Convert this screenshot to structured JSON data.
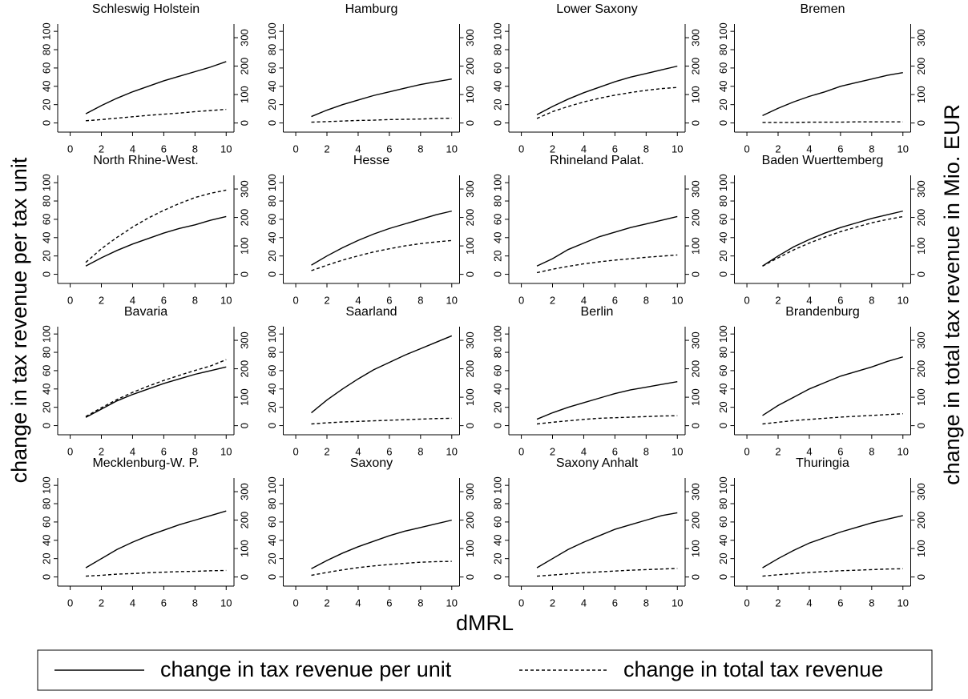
{
  "y_label": "change in tax revenue per tax unit",
  "y2_label": "change in total tax revenue in Mio. EUR",
  "x_label": "dMRL",
  "legend": [
    {
      "name": "change in tax revenue per unit",
      "style": "solid",
      "color": "#000000"
    },
    {
      "name": "change in total tax revenue",
      "style": "dashed",
      "color": "#000000"
    }
  ],
  "chart_data": [
    {
      "type": "line",
      "title": "Schleswig Holstein",
      "x": [
        1,
        2,
        3,
        4,
        5,
        6,
        7,
        8,
        9,
        10
      ],
      "xlim": [
        -0.8,
        10.5
      ],
      "xticks": [
        0,
        2,
        4,
        6,
        8,
        10
      ],
      "ylim": [
        -10,
        108
      ],
      "yticks": [
        0,
        20,
        40,
        60,
        80,
        100
      ],
      "y2lim": [
        -32,
        348
      ],
      "y2ticks": [
        0,
        100,
        200,
        300
      ],
      "series": [
        {
          "color": "#000000",
          "style": "solid",
          "values": [
            10,
            19,
            27,
            34,
            40,
            46,
            51,
            56,
            61,
            67
          ]
        },
        {
          "color": "#000000",
          "style": "dashed",
          "axis": "y2",
          "values": [
            8,
            12,
            17,
            22,
            27,
            31,
            35,
            40,
            44,
            48
          ]
        }
      ]
    },
    {
      "type": "line",
      "title": "Hamburg",
      "x": [
        1,
        2,
        3,
        4,
        5,
        6,
        7,
        8,
        9,
        10
      ],
      "xlim": [
        -0.8,
        10.5
      ],
      "xticks": [
        0,
        2,
        4,
        6,
        8,
        10
      ],
      "ylim": [
        -10,
        108
      ],
      "yticks": [
        0,
        20,
        40,
        60,
        80,
        100
      ],
      "y2lim": [
        -32,
        348
      ],
      "y2ticks": [
        0,
        100,
        200,
        300
      ],
      "series": [
        {
          "color": "#000000",
          "style": "solid",
          "values": [
            7,
            14,
            20,
            25,
            30,
            34,
            38,
            42,
            45,
            48
          ]
        },
        {
          "color": "#000000",
          "style": "dashed",
          "axis": "y2",
          "values": [
            3,
            5,
            7,
            9,
            10,
            12,
            13,
            14,
            16,
            17
          ]
        }
      ]
    },
    {
      "type": "line",
      "title": "Lower Saxony",
      "x": [
        1,
        2,
        3,
        4,
        5,
        6,
        7,
        8,
        9,
        10
      ],
      "xlim": [
        -0.8,
        10.5
      ],
      "xticks": [
        0,
        2,
        4,
        6,
        8,
        10
      ],
      "ylim": [
        -10,
        108
      ],
      "yticks": [
        0,
        20,
        40,
        60,
        80,
        100
      ],
      "y2lim": [
        -32,
        348
      ],
      "y2ticks": [
        0,
        100,
        200,
        300
      ],
      "series": [
        {
          "color": "#000000",
          "style": "solid",
          "values": [
            9,
            18,
            26,
            33,
            39,
            45,
            50,
            54,
            58,
            62
          ]
        },
        {
          "color": "#000000",
          "style": "dashed",
          "axis": "y2",
          "values": [
            16,
            40,
            58,
            74,
            87,
            98,
            107,
            115,
            121,
            125
          ]
        }
      ]
    },
    {
      "type": "line",
      "title": "Bremen",
      "x": [
        1,
        2,
        3,
        4,
        5,
        6,
        7,
        8,
        9,
        10
      ],
      "xlim": [
        -0.8,
        10.5
      ],
      "xticks": [
        0,
        2,
        4,
        6,
        8,
        10
      ],
      "ylim": [
        -10,
        108
      ],
      "yticks": [
        0,
        20,
        40,
        60,
        80,
        100
      ],
      "y2lim": [
        -32,
        348
      ],
      "y2ticks": [
        0,
        100,
        200,
        300
      ],
      "series": [
        {
          "color": "#000000",
          "style": "solid",
          "values": [
            8,
            16,
            23,
            29,
            34,
            40,
            44,
            48,
            52,
            55
          ]
        },
        {
          "color": "#000000",
          "style": "dashed",
          "axis": "y2",
          "values": [
            2,
            2,
            2,
            3,
            3,
            3,
            4,
            4,
            4,
            4
          ]
        }
      ]
    },
    {
      "type": "line",
      "title": "North Rhine-West.",
      "x": [
        1,
        2,
        3,
        4,
        5,
        6,
        7,
        8,
        9,
        10
      ],
      "xlim": [
        -0.8,
        10.5
      ],
      "xticks": [
        0,
        2,
        4,
        6,
        8,
        10
      ],
      "ylim": [
        -10,
        108
      ],
      "yticks": [
        0,
        20,
        40,
        60,
        80,
        100
      ],
      "y2lim": [
        -32,
        348
      ],
      "y2ticks": [
        0,
        100,
        200,
        300
      ],
      "series": [
        {
          "color": "#000000",
          "style": "solid",
          "values": [
            9,
            18,
            26,
            33,
            39,
            45,
            50,
            54,
            59,
            63
          ]
        },
        {
          "color": "#000000",
          "style": "dashed",
          "axis": "y2",
          "values": [
            42,
            90,
            130,
            166,
            198,
            225,
            249,
            270,
            285,
            296
          ]
        }
      ]
    },
    {
      "type": "line",
      "title": "Hesse",
      "x": [
        1,
        2,
        3,
        4,
        5,
        6,
        7,
        8,
        9,
        10
      ],
      "xlim": [
        -0.8,
        10.5
      ],
      "xticks": [
        0,
        2,
        4,
        6,
        8,
        10
      ],
      "ylim": [
        -10,
        108
      ],
      "yticks": [
        0,
        20,
        40,
        60,
        80,
        100
      ],
      "y2lim": [
        -32,
        348
      ],
      "y2ticks": [
        0,
        100,
        200,
        300
      ],
      "series": [
        {
          "color": "#000000",
          "style": "solid",
          "values": [
            10,
            20,
            29,
            37,
            44,
            50,
            55,
            60,
            65,
            69
          ]
        },
        {
          "color": "#000000",
          "style": "dashed",
          "axis": "y2",
          "values": [
            13,
            32,
            50,
            65,
            79,
            90,
            100,
            108,
            114,
            119
          ]
        }
      ]
    },
    {
      "type": "line",
      "title": "Rhineland Palat.",
      "x": [
        1,
        2,
        3,
        4,
        5,
        6,
        7,
        8,
        9,
        10
      ],
      "xlim": [
        -0.8,
        10.5
      ],
      "xticks": [
        0,
        2,
        4,
        6,
        8,
        10
      ],
      "ylim": [
        -10,
        108
      ],
      "yticks": [
        0,
        20,
        40,
        60,
        80,
        100
      ],
      "y2lim": [
        -32,
        348
      ],
      "y2ticks": [
        0,
        100,
        200,
        300
      ],
      "series": [
        {
          "color": "#000000",
          "style": "solid",
          "values": [
            9,
            17,
            27,
            34,
            41,
            46,
            51,
            55,
            59,
            63
          ]
        },
        {
          "color": "#000000",
          "style": "dashed",
          "axis": "y2",
          "values": [
            6,
            18,
            28,
            37,
            44,
            50,
            55,
            60,
            64,
            68
          ]
        }
      ]
    },
    {
      "type": "line",
      "title": "Baden Wuerttemberg",
      "x": [
        1,
        2,
        3,
        4,
        5,
        6,
        7,
        8,
        9,
        10
      ],
      "xlim": [
        -0.8,
        10.5
      ],
      "xticks": [
        0,
        2,
        4,
        6,
        8,
        10
      ],
      "ylim": [
        -10,
        108
      ],
      "yticks": [
        0,
        20,
        40,
        60,
        80,
        100
      ],
      "y2lim": [
        -32,
        348
      ],
      "y2ticks": [
        0,
        100,
        200,
        300
      ],
      "series": [
        {
          "color": "#000000",
          "style": "solid",
          "values": [
            9,
            20,
            30,
            38,
            45,
            51,
            56,
            61,
            65,
            69
          ]
        },
        {
          "color": "#000000",
          "style": "dashed",
          "axis": "y2",
          "values": [
            29,
            58,
            86,
            110,
            131,
            150,
            166,
            181,
            193,
            203
          ]
        }
      ]
    },
    {
      "type": "line",
      "title": "Bavaria",
      "x": [
        1,
        2,
        3,
        4,
        5,
        6,
        7,
        8,
        9,
        10
      ],
      "xlim": [
        -0.8,
        10.5
      ],
      "xticks": [
        0,
        2,
        4,
        6,
        8,
        10
      ],
      "ylim": [
        -10,
        108
      ],
      "yticks": [
        0,
        20,
        40,
        60,
        80,
        100
      ],
      "y2lim": [
        -32,
        348
      ],
      "y2ticks": [
        0,
        100,
        200,
        300
      ],
      "series": [
        {
          "color": "#000000",
          "style": "solid",
          "values": [
            9,
            18,
            27,
            34,
            40,
            46,
            51,
            56,
            60,
            64
          ]
        },
        {
          "color": "#000000",
          "style": "dashed",
          "axis": "y2",
          "values": [
            32,
            63,
            92,
            117,
            139,
            159,
            177,
            194,
            210,
            232
          ]
        }
      ]
    },
    {
      "type": "line",
      "title": "Saarland",
      "x": [
        1,
        2,
        3,
        4,
        5,
        6,
        7,
        8,
        9,
        10
      ],
      "xlim": [
        -0.8,
        10.5
      ],
      "xticks": [
        0,
        2,
        4,
        6,
        8,
        10
      ],
      "ylim": [
        -10,
        108
      ],
      "yticks": [
        0,
        20,
        40,
        60,
        80,
        100
      ],
      "y2lim": [
        -32,
        348
      ],
      "y2ticks": [
        0,
        100,
        200,
        300
      ],
      "series": [
        {
          "color": "#000000",
          "style": "solid",
          "values": [
            14,
            28,
            40,
            51,
            61,
            69,
            77,
            84,
            91,
            98
          ]
        },
        {
          "color": "#000000",
          "style": "dashed",
          "axis": "y2",
          "values": [
            6,
            10,
            13,
            15,
            17,
            19,
            21,
            23,
            25,
            26
          ]
        }
      ]
    },
    {
      "type": "line",
      "title": "Berlin",
      "x": [
        1,
        2,
        3,
        4,
        5,
        6,
        7,
        8,
        9,
        10
      ],
      "xlim": [
        -0.8,
        10.5
      ],
      "xticks": [
        0,
        2,
        4,
        6,
        8,
        10
      ],
      "ylim": [
        -10,
        108
      ],
      "yticks": [
        0,
        20,
        40,
        60,
        80,
        100
      ],
      "y2lim": [
        -32,
        348
      ],
      "y2ticks": [
        0,
        100,
        200,
        300
      ],
      "series": [
        {
          "color": "#000000",
          "style": "solid",
          "values": [
            7,
            14,
            20,
            25,
            30,
            35,
            39,
            42,
            45,
            48
          ]
        },
        {
          "color": "#000000",
          "style": "dashed",
          "axis": "y2",
          "values": [
            6,
            12,
            17,
            22,
            26,
            28,
            30,
            32,
            34,
            35
          ]
        }
      ]
    },
    {
      "type": "line",
      "title": "Brandenburg",
      "x": [
        1,
        2,
        3,
        4,
        5,
        6,
        7,
        8,
        9,
        10
      ],
      "xlim": [
        -0.8,
        10.5
      ],
      "xticks": [
        0,
        2,
        4,
        6,
        8,
        10
      ],
      "ylim": [
        -10,
        108
      ],
      "yticks": [
        0,
        20,
        40,
        60,
        80,
        100
      ],
      "y2lim": [
        -32,
        348
      ],
      "y2ticks": [
        0,
        100,
        200,
        300
      ],
      "series": [
        {
          "color": "#000000",
          "style": "solid",
          "values": [
            11,
            22,
            31,
            40,
            47,
            54,
            59,
            64,
            70,
            75
          ]
        },
        {
          "color": "#000000",
          "style": "dashed",
          "axis": "y2",
          "values": [
            6,
            12,
            18,
            22,
            26,
            30,
            33,
            36,
            39,
            42
          ]
        }
      ]
    },
    {
      "type": "line",
      "title": "Mecklenburg-W. P.",
      "x": [
        1,
        2,
        3,
        4,
        5,
        6,
        7,
        8,
        9,
        10
      ],
      "xlim": [
        -0.8,
        10.5
      ],
      "xticks": [
        0,
        2,
        4,
        6,
        8,
        10
      ],
      "ylim": [
        -10,
        108
      ],
      "yticks": [
        0,
        20,
        40,
        60,
        80,
        100
      ],
      "y2lim": [
        -32,
        348
      ],
      "y2ticks": [
        0,
        100,
        200,
        300
      ],
      "series": [
        {
          "color": "#000000",
          "style": "solid",
          "values": [
            10,
            20,
            30,
            38,
            45,
            51,
            57,
            62,
            67,
            72
          ]
        },
        {
          "color": "#000000",
          "style": "dashed",
          "axis": "y2",
          "values": [
            3,
            6,
            10,
            12,
            15,
            17,
            19,
            20,
            22,
            23
          ]
        }
      ]
    },
    {
      "type": "line",
      "title": "Saxony",
      "x": [
        1,
        2,
        3,
        4,
        5,
        6,
        7,
        8,
        9,
        10
      ],
      "xlim": [
        -0.8,
        10.5
      ],
      "xticks": [
        0,
        2,
        4,
        6,
        8,
        10
      ],
      "ylim": [
        -10,
        108
      ],
      "yticks": [
        0,
        20,
        40,
        60,
        80,
        100
      ],
      "y2lim": [
        -32,
        348
      ],
      "y2ticks": [
        0,
        100,
        200,
        300
      ],
      "series": [
        {
          "color": "#000000",
          "style": "solid",
          "values": [
            9,
            18,
            26,
            33,
            39,
            45,
            50,
            54,
            58,
            62
          ]
        },
        {
          "color": "#000000",
          "style": "dashed",
          "axis": "y2",
          "values": [
            6,
            16,
            25,
            33,
            39,
            44,
            48,
            52,
            54,
            55
          ]
        }
      ]
    },
    {
      "type": "line",
      "title": "Saxony Anhalt",
      "x": [
        1,
        2,
        3,
        4,
        5,
        6,
        7,
        8,
        9,
        10
      ],
      "xlim": [
        -0.8,
        10.5
      ],
      "xticks": [
        0,
        2,
        4,
        6,
        8,
        10
      ],
      "ylim": [
        -10,
        108
      ],
      "yticks": [
        0,
        20,
        40,
        60,
        80,
        100
      ],
      "y2lim": [
        -32,
        348
      ],
      "y2ticks": [
        0,
        100,
        200,
        300
      ],
      "series": [
        {
          "color": "#000000",
          "style": "solid",
          "values": [
            10,
            20,
            30,
            38,
            45,
            52,
            57,
            62,
            67,
            70
          ]
        },
        {
          "color": "#000000",
          "style": "dashed",
          "axis": "y2",
          "values": [
            3,
            7,
            11,
            15,
            18,
            21,
            24,
            26,
            28,
            30
          ]
        }
      ]
    },
    {
      "type": "line",
      "title": "Thuringia",
      "x": [
        1,
        2,
        3,
        4,
        5,
        6,
        7,
        8,
        9,
        10
      ],
      "xlim": [
        -0.8,
        10.5
      ],
      "xticks": [
        0,
        2,
        4,
        6,
        8,
        10
      ],
      "ylim": [
        -10,
        108
      ],
      "yticks": [
        0,
        20,
        40,
        60,
        80,
        100
      ],
      "y2lim": [
        -32,
        348
      ],
      "y2ticks": [
        0,
        100,
        200,
        300
      ],
      "series": [
        {
          "color": "#000000",
          "style": "solid",
          "values": [
            10,
            20,
            29,
            37,
            43,
            49,
            54,
            59,
            63,
            67
          ]
        },
        {
          "color": "#000000",
          "style": "dashed",
          "axis": "y2",
          "values": [
            3,
            8,
            12,
            16,
            19,
            22,
            24,
            26,
            28,
            29
          ]
        }
      ]
    }
  ]
}
